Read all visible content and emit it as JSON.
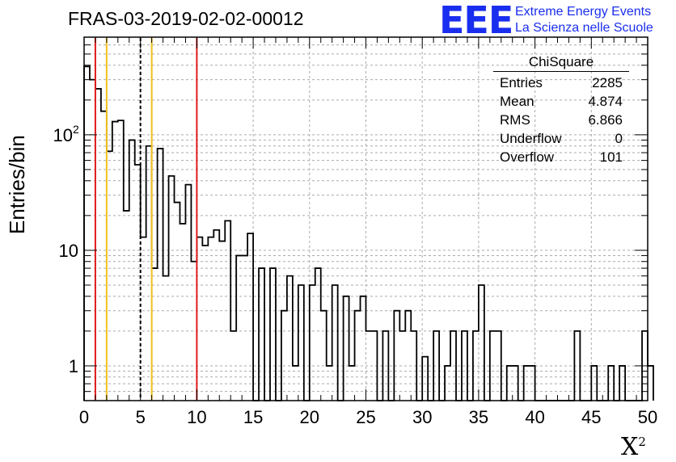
{
  "title": "FRAS-03-2019-02-02-00012",
  "ylabel": "Entries/bin",
  "xlabel": "X",
  "xlabel_sup": "2",
  "logo": {
    "mark": "EEE",
    "line1": "Extreme Energy Events",
    "line2": "La Scienza nelle Scuole",
    "color": "#1a2ef0"
  },
  "stats": {
    "name": "ChiSquare",
    "rows": [
      {
        "label": "Entries",
        "value": "2285"
      },
      {
        "label": "Mean",
        "value": "4.874"
      },
      {
        "label": "RMS",
        "value": "6.866"
      },
      {
        "label": "Underflow",
        "value": "0"
      },
      {
        "label": "Overflow",
        "value": "101"
      }
    ]
  },
  "chart_data": {
    "type": "bar",
    "style": "step-histogram",
    "yscale": "log",
    "xlim": [
      0,
      50
    ],
    "ylim": [
      0.5,
      700
    ],
    "bin_width": 0.5,
    "grid": true,
    "x_ticks": [
      "0",
      "5",
      "10",
      "15",
      "20",
      "25",
      "30",
      "35",
      "40",
      "45",
      "50"
    ],
    "y_ticks": [
      {
        "value": 1,
        "label": "1"
      },
      {
        "value": 10,
        "label": "10"
      },
      {
        "value": 100,
        "label": "10",
        "sup": "2"
      }
    ],
    "values": [
      390,
      300,
      250,
      160,
      72,
      130,
      133,
      22,
      90,
      55,
      13,
      80,
      7,
      76,
      6,
      44,
      26,
      17,
      37,
      8,
      13,
      11,
      13,
      15,
      12,
      18,
      2,
      9,
      9,
      14,
      0.5,
      7,
      0.5,
      7,
      0.5,
      3,
      6,
      1,
      5,
      0.5,
      5,
      7,
      3,
      1,
      5,
      0.5,
      4,
      1,
      3,
      4,
      2,
      2,
      0.5,
      2,
      0.5,
      3,
      2,
      3,
      2,
      0.5,
      1.2,
      0.5,
      2,
      0.5,
      1,
      2,
      0.5,
      2,
      0.5,
      2,
      5,
      0.5,
      2,
      2,
      0.5,
      1,
      1,
      0.5,
      1,
      1,
      0.5,
      0.5,
      0.5,
      0.5,
      0.5,
      0.5,
      0.5,
      2,
      0.5,
      0.5,
      1,
      0.5,
      0.5,
      1,
      0.5,
      1,
      0.5,
      0.5,
      0.5,
      2,
      1
    ],
    "vertical_lines": [
      {
        "x": 1,
        "color": "#e31b1b",
        "style": "solid"
      },
      {
        "x": 2,
        "color": "#f2c01e",
        "style": "solid"
      },
      {
        "x": 5,
        "color": "#000000",
        "style": "dashed"
      },
      {
        "x": 6,
        "color": "#f2c01e",
        "style": "solid"
      },
      {
        "x": 10,
        "color": "#e31b1b",
        "style": "solid"
      }
    ]
  }
}
